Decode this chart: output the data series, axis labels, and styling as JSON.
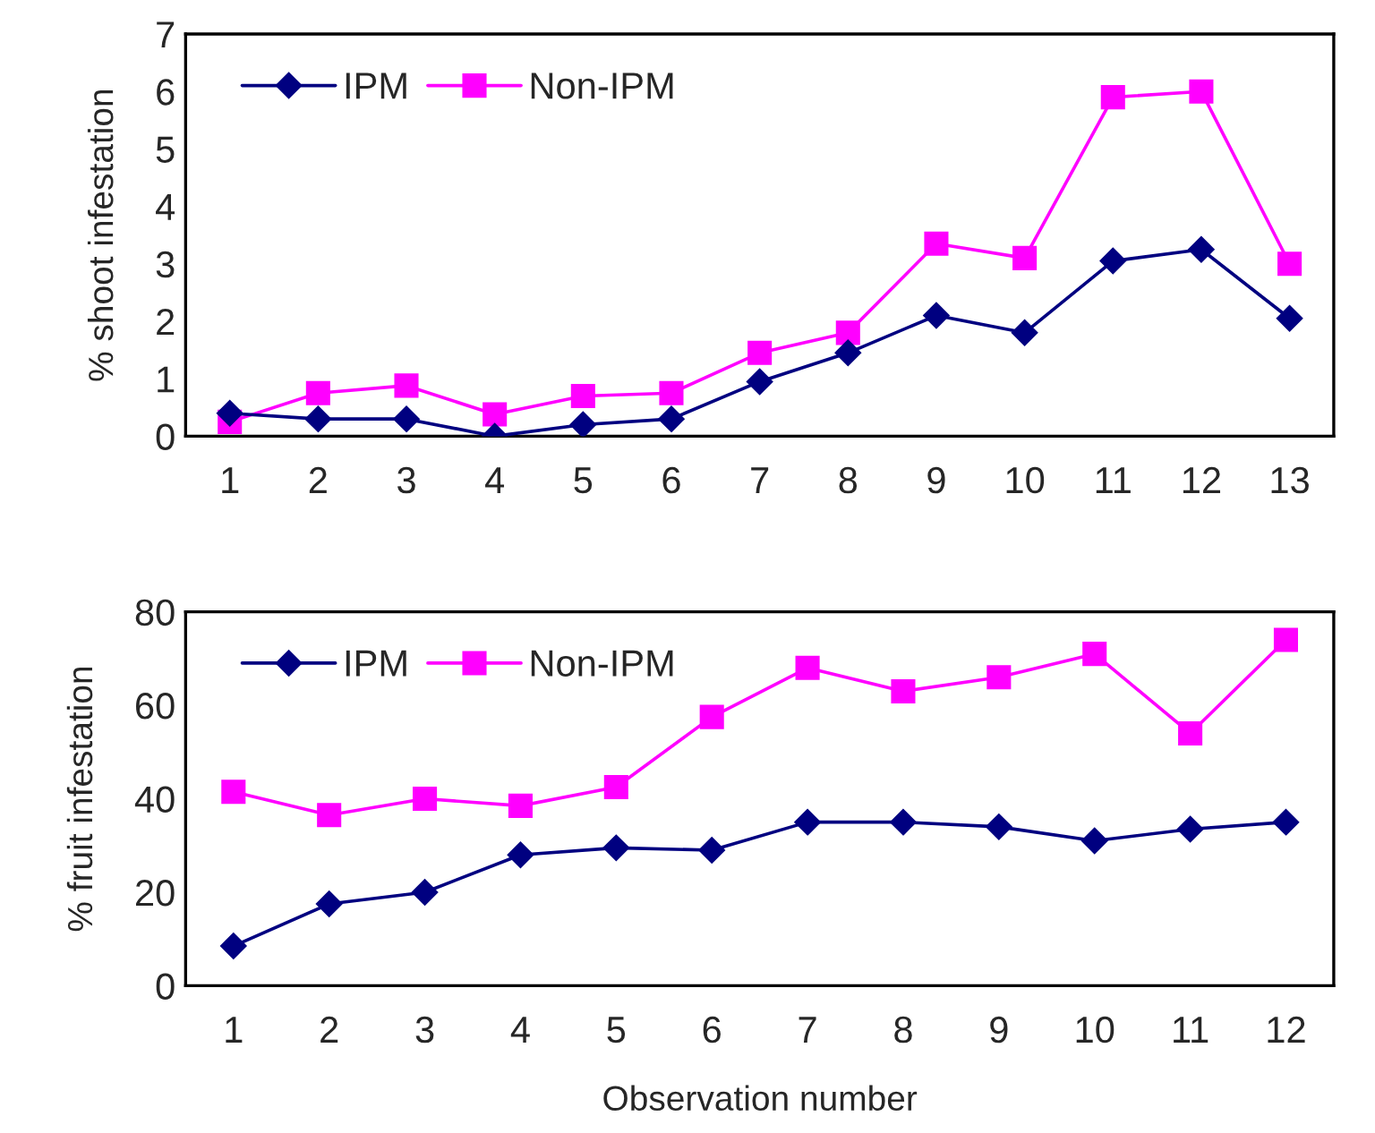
{
  "chart_data": [
    {
      "type": "line",
      "ylabel": "% shoot infestation",
      "categories": [
        "1",
        "2",
        "3",
        "4",
        "5",
        "6",
        "7",
        "8",
        "9",
        "10",
        "11",
        "12",
        "13"
      ],
      "ylim": [
        0,
        7
      ],
      "yticks": [
        0,
        1,
        2,
        3,
        4,
        5,
        6,
        7
      ],
      "grid": false,
      "legend": "top left",
      "series": [
        {
          "name": "IPM",
          "color": "#000080",
          "marker": "diamond",
          "values": [
            0.4,
            0.3,
            0.3,
            0,
            0.2,
            0.3,
            0.95,
            1.45,
            2.1,
            1.8,
            3.05,
            3.25,
            2.05
          ]
        },
        {
          "name": "Non-IPM",
          "color": "#ff00ff",
          "marker": "square",
          "values": [
            0.25,
            0.75,
            0.88,
            0.38,
            0.7,
            0.75,
            1.45,
            1.8,
            3.35,
            3.1,
            5.9,
            6.0,
            3.0
          ]
        }
      ]
    },
    {
      "type": "line",
      "ylabel": "% fruit infestation",
      "xlabel": "Observation number",
      "categories": [
        "1",
        "2",
        "3",
        "4",
        "5",
        "6",
        "7",
        "8",
        "9",
        "10",
        "11",
        "12"
      ],
      "ylim": [
        0,
        80
      ],
      "yticks": [
        0,
        20,
        40,
        60,
        80
      ],
      "grid": false,
      "legend": "top left",
      "series": [
        {
          "name": "IPM",
          "color": "#000080",
          "marker": "diamond",
          "values": [
            8.5,
            17.5,
            20,
            28,
            29.5,
            29,
            35,
            35,
            34,
            31,
            33.5,
            35
          ]
        },
        {
          "name": "Non-IPM",
          "color": "#ff00ff",
          "marker": "square",
          "values": [
            41.5,
            36.5,
            40,
            38.5,
            42.5,
            57.5,
            68,
            63,
            66,
            71,
            54,
            74
          ]
        }
      ]
    }
  ]
}
